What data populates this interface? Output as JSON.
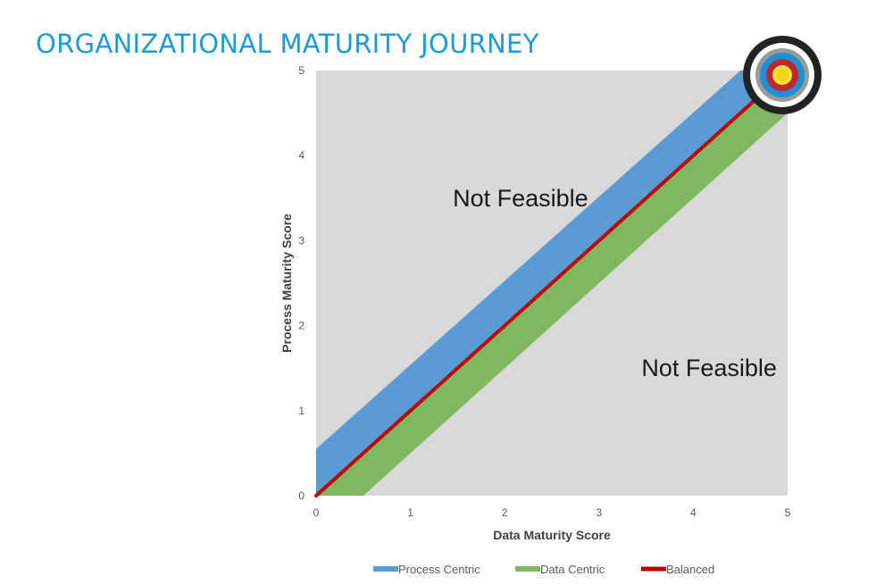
{
  "page": {
    "title": "ORGANIZATIONAL MATURITY JOURNEY"
  },
  "chart_data": {
    "type": "area",
    "xlabel": "Data Maturity Score",
    "ylabel": "Process Maturity Score",
    "xlim": [
      0,
      5
    ],
    "ylim": [
      0,
      5
    ],
    "x_ticks": [
      "0",
      "1",
      "2",
      "3",
      "4",
      "5"
    ],
    "y_ticks": [
      "0",
      "1",
      "2",
      "3",
      "4",
      "5"
    ],
    "grid": false,
    "legend_position": "bottom",
    "plot_background": "#d9d9d9",
    "series": [
      {
        "name": "Process Centric",
        "color": "#5b9bd5",
        "type": "band",
        "lower": [
          [
            0,
            0
          ],
          [
            5,
            5
          ]
        ],
        "upper": [
          [
            0,
            0.55
          ],
          [
            4.5,
            5
          ]
        ]
      },
      {
        "name": "Data Centric",
        "color": "#80b85f",
        "type": "band",
        "upper": [
          [
            0,
            0
          ],
          [
            5,
            5
          ]
        ],
        "lower": [
          [
            0.5,
            0
          ],
          [
            5,
            4.5
          ]
        ]
      },
      {
        "name": "Balanced",
        "color": "#c00000",
        "type": "line",
        "points": [
          [
            0,
            0
          ],
          [
            5,
            5
          ]
        ]
      }
    ],
    "annotations": [
      {
        "text": "Not Feasible",
        "x": 1.45,
        "y": 3.5
      },
      {
        "text": "Not Feasible",
        "x": 3.45,
        "y": 1.5
      }
    ],
    "target_marker": {
      "icon": "bullseye-target-icon",
      "x": 5,
      "y": 5
    }
  }
}
